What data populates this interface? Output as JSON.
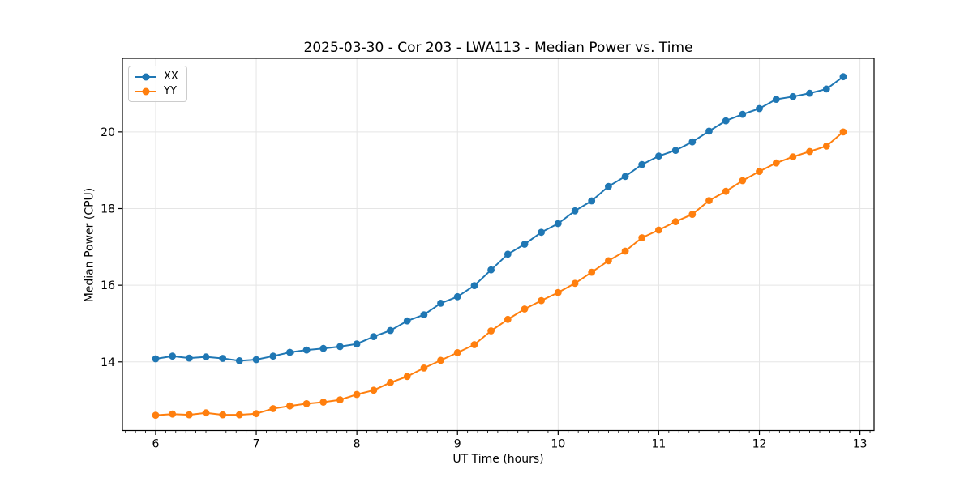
{
  "figure": {
    "background": "#ffffff"
  },
  "chart_data": {
    "type": "line",
    "title": "2025-03-30 - Cor 203 - LWA113 - Median Power vs. Time",
    "xlabel": "UT Time (hours)",
    "ylabel": "Median Power (CPU)",
    "xlim": [
      5.67,
      13.14
    ],
    "ylim": [
      12.21,
      21.92
    ],
    "xticks": [
      6,
      7,
      8,
      9,
      10,
      11,
      12,
      13
    ],
    "yticks": [
      14,
      16,
      18,
      20
    ],
    "x_minor_step": 0.1,
    "grid": true,
    "grid_color": "#e5e5e5",
    "axis_color": "#000000",
    "legend_position": "upper-left",
    "marker": "circle",
    "x": [
      6,
      6.167,
      6.333,
      6.5,
      6.667,
      6.833,
      7,
      7.167,
      7.333,
      7.5,
      7.667,
      7.833,
      8,
      8.167,
      8.333,
      8.5,
      8.667,
      8.833,
      9,
      9.167,
      9.333,
      9.5,
      9.667,
      9.833,
      10,
      10.167,
      10.333,
      10.5,
      10.667,
      10.833,
      11,
      11.167,
      11.333,
      11.5,
      11.667,
      11.833,
      12,
      12.167,
      12.333,
      12.5,
      12.667,
      12.833
    ],
    "series": [
      {
        "name": "XX",
        "color": "#1f77b4",
        "values": [
          14.08,
          14.15,
          14.1,
          14.13,
          14.09,
          14.03,
          14.06,
          14.15,
          14.25,
          14.31,
          14.35,
          14.4,
          14.47,
          14.66,
          14.82,
          15.07,
          15.23,
          15.53,
          15.7,
          15.99,
          16.4,
          16.81,
          17.07,
          17.38,
          17.61,
          17.94,
          18.2,
          18.58,
          18.84,
          19.15,
          19.37,
          19.52,
          19.74,
          20.02,
          20.29,
          20.46,
          20.61,
          20.85,
          20.92,
          21.01,
          21.12,
          21.44
        ]
      },
      {
        "name": "YY",
        "color": "#ff7f0e",
        "values": [
          12.61,
          12.64,
          12.62,
          12.67,
          12.62,
          12.62,
          12.65,
          12.78,
          12.85,
          12.91,
          12.95,
          13.01,
          13.15,
          13.26,
          13.46,
          13.62,
          13.84,
          14.04,
          14.24,
          14.45,
          14.81,
          15.11,
          15.38,
          15.6,
          15.81,
          16.05,
          16.34,
          16.64,
          16.89,
          17.24,
          17.44,
          17.66,
          17.85,
          18.21,
          18.45,
          18.73,
          18.97,
          19.19,
          19.35,
          19.49,
          19.63,
          20.0
        ]
      }
    ]
  }
}
